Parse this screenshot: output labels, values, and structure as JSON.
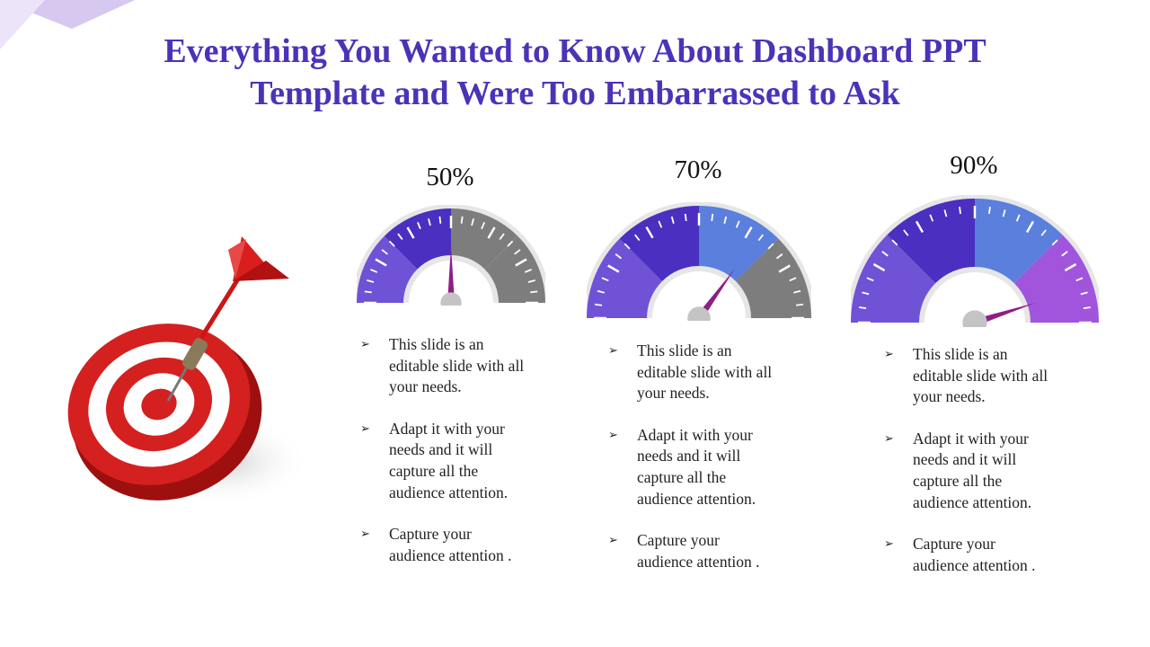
{
  "title": {
    "line1": "Everything You Wanted to Know About Dashboard PPT",
    "line2": "Template and Were Too Embarrassed to Ask"
  },
  "colors": {
    "title": "#4b33b8",
    "gauge_violet": "#6f52d6",
    "gauge_indigo": "#4a2fc0",
    "gauge_blue": "#5a7fdc",
    "gauge_purple": "#a055dc",
    "gauge_gray": "#7d7d7d",
    "needle": "#8e1f86",
    "pivot": "#c4c4c4",
    "target_red": "#cf1f1f"
  },
  "gauges": [
    {
      "label": "50%",
      "value": 0.5,
      "bullets": [
        "This slide is an editable slide with all your needs.",
        "Adapt it with your needs and it will capture all the audience attention.",
        "Capture your audience attention ."
      ]
    },
    {
      "label": "70%",
      "value": 0.7,
      "bullets": [
        "This slide is an editable slide with all your needs.",
        "Adapt it with your needs and it will capture all the audience attention.",
        "Capture your audience attention ."
      ]
    },
    {
      "label": "90%",
      "value": 0.9,
      "bullets": [
        "This slide is an editable slide with all your needs.",
        "Adapt it with your needs and it will capture all the audience attention.",
        "Capture your audience attention ."
      ]
    }
  ],
  "icons": {
    "bullet": "arrow-bullet-icon",
    "illustration": "dartboard-icon"
  }
}
